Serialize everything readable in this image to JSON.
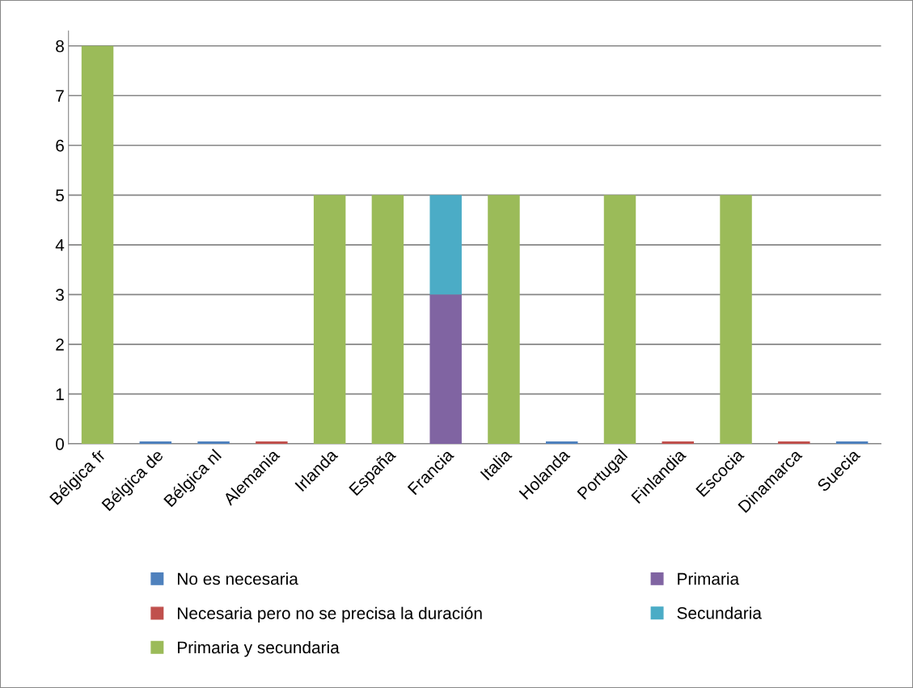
{
  "chart_data": {
    "type": "bar",
    "stacked": true,
    "categories": [
      "Bélgica fr",
      "Bélgica de",
      "Bélgica nl",
      "Alemania",
      "Irlanda",
      "España",
      "Francia",
      "Italia",
      "Holanda",
      "Portugal",
      "Finlandia",
      "Escocia",
      "Dinamarca",
      "Suecia"
    ],
    "series": [
      {
        "name": "No es necesaria",
        "color": "#4f81bd",
        "values": [
          null,
          0,
          0,
          null,
          null,
          null,
          null,
          null,
          0,
          null,
          null,
          null,
          null,
          0
        ]
      },
      {
        "name": "Necesaria pero no se precisa la duración",
        "color": "#c0504d",
        "values": [
          null,
          null,
          null,
          0,
          null,
          null,
          null,
          null,
          null,
          null,
          0,
          null,
          0,
          null
        ]
      },
      {
        "name": "Primaria y secundaria",
        "color": "#9bbb59",
        "values": [
          8,
          null,
          null,
          null,
          5,
          5,
          null,
          5,
          null,
          5,
          null,
          5,
          null,
          null
        ]
      },
      {
        "name": "Primaria",
        "color": "#8064a2",
        "values": [
          null,
          null,
          null,
          null,
          null,
          null,
          3,
          null,
          null,
          null,
          null,
          null,
          null,
          null
        ]
      },
      {
        "name": "Secundaria",
        "color": "#4bacc6",
        "values": [
          null,
          null,
          null,
          null,
          null,
          null,
          2,
          null,
          null,
          null,
          null,
          null,
          null,
          null
        ]
      }
    ],
    "ylim": [
      0,
      8.3
    ],
    "yticks": [
      0,
      1,
      2,
      3,
      4,
      5,
      6,
      7,
      8
    ],
    "grid": "y",
    "legend": "bottom"
  }
}
